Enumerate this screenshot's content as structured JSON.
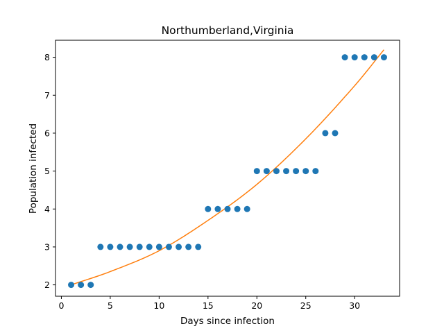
{
  "chart_data": {
    "type": "scatter",
    "title": "Northumberland,Virginia",
    "xlabel": "Days since infection",
    "ylabel": "Population infected",
    "xlim": [
      -0.6,
      34.6
    ],
    "ylim": [
      1.7,
      8.45
    ],
    "xticks": [
      0,
      5,
      10,
      15,
      20,
      25,
      30
    ],
    "yticks": [
      2,
      3,
      4,
      5,
      6,
      7,
      8
    ],
    "grid": false,
    "series": [
      {
        "kind": "points",
        "color": "#1f77b4",
        "x": [
          1,
          2,
          3,
          4,
          5,
          6,
          7,
          8,
          9,
          10,
          11,
          12,
          13,
          14,
          15,
          16,
          17,
          18,
          19,
          20,
          21,
          22,
          23,
          24,
          25,
          26,
          27,
          28,
          29,
          30,
          31,
          32,
          33
        ],
        "y": [
          2,
          2,
          2,
          3,
          3,
          3,
          3,
          3,
          3,
          3,
          3,
          3,
          3,
          3,
          4,
          4,
          4,
          4,
          4,
          5,
          5,
          5,
          5,
          5,
          5,
          5,
          6,
          6,
          8,
          8,
          8,
          8,
          8
        ]
      },
      {
        "kind": "fit-curve",
        "color": "#ff7f0e",
        "x": [
          1,
          5,
          10,
          15,
          20,
          25,
          30,
          33
        ],
        "y": [
          2.0,
          2.35,
          2.9,
          3.7,
          4.65,
          5.85,
          7.25,
          8.2
        ]
      }
    ]
  }
}
